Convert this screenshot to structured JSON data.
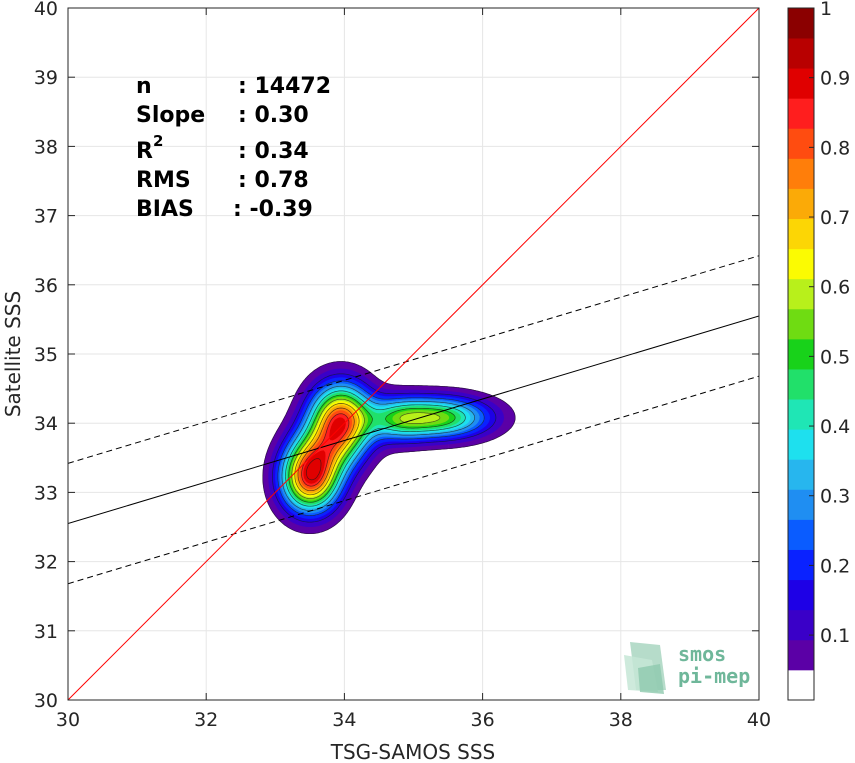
{
  "chart_data": {
    "type": "contour",
    "xlabel": "TSG-SAMOS SSS",
    "ylabel": "Satellite SSS",
    "xlim": [
      30,
      40
    ],
    "ylim": [
      30,
      40
    ],
    "xticks": [
      "30",
      "32",
      "34",
      "36",
      "38",
      "40"
    ],
    "yticks": [
      "30",
      "31",
      "32",
      "33",
      "34",
      "35",
      "36",
      "37",
      "38",
      "39",
      "40"
    ],
    "grid": true,
    "stats": [
      {
        "label": "n",
        "value": ": 14472"
      },
      {
        "label": "Slope",
        "value": ": 0.30"
      },
      {
        "label": "R",
        "sup": "2",
        "value": ": 0.34"
      },
      {
        "label": "RMS",
        "value": ": 0.78"
      },
      {
        "label": "BIAS",
        "value": ": -0.39"
      }
    ],
    "identity_line": {
      "x": [
        30,
        40
      ],
      "y": [
        30,
        40
      ],
      "color": "#ff0000"
    },
    "fit_line": {
      "x": [
        30,
        40
      ],
      "y": [
        32.55,
        35.55
      ],
      "color": "#000000"
    },
    "fit_upper": {
      "x": [
        30,
        40
      ],
      "y": [
        33.42,
        36.42
      ],
      "color": "#000000",
      "style": "dashed"
    },
    "fit_lower": {
      "x": [
        30,
        40
      ],
      "y": [
        31.68,
        34.68
      ],
      "color": "#000000",
      "style": "dashed"
    },
    "density_blobs": [
      {
        "x": 33.5,
        "y": 33.2,
        "sx": 0.28,
        "sy": 0.33,
        "amp": 0.92
      },
      {
        "x": 33.95,
        "y": 34.05,
        "sx": 0.3,
        "sy": 0.35,
        "amp": 0.9
      },
      {
        "x": 33.7,
        "y": 33.6,
        "sx": 0.3,
        "sy": 0.3,
        "amp": 0.38
      },
      {
        "x": 35.35,
        "y": 34.08,
        "sx": 0.5,
        "sy": 0.2,
        "amp": 0.62
      },
      {
        "x": 34.75,
        "y": 34.05,
        "sx": 0.3,
        "sy": 0.22,
        "amp": 0.3
      }
    ],
    "colorbar": {
      "colors": [
        "#ffffff",
        "#5b00a6",
        "#3a00c8",
        "#1e00e6",
        "#0a22ff",
        "#0a5cff",
        "#1f8ef2",
        "#27b6ee",
        "#1ee0ee",
        "#1fe6b5",
        "#21e06a",
        "#18d21a",
        "#6fdc12",
        "#b8f01b",
        "#fbfb02",
        "#fcd605",
        "#fbaa07",
        "#ff7e0a",
        "#ff4c10",
        "#ff1e1e",
        "#e00000",
        "#b80000",
        "#8b0000"
      ],
      "tick_labels": [
        "0.1",
        "0.2",
        "0.3",
        "0.4",
        "0.5",
        "0.6",
        "0.7",
        "0.8",
        "0.9",
        "1"
      ],
      "tick_values": [
        0.1,
        0.2,
        0.3,
        0.4,
        0.5,
        0.6,
        0.7,
        0.8,
        0.9,
        1.0
      ]
    },
    "logo": {
      "line1": "smos",
      "line2": "pi-mep"
    }
  }
}
